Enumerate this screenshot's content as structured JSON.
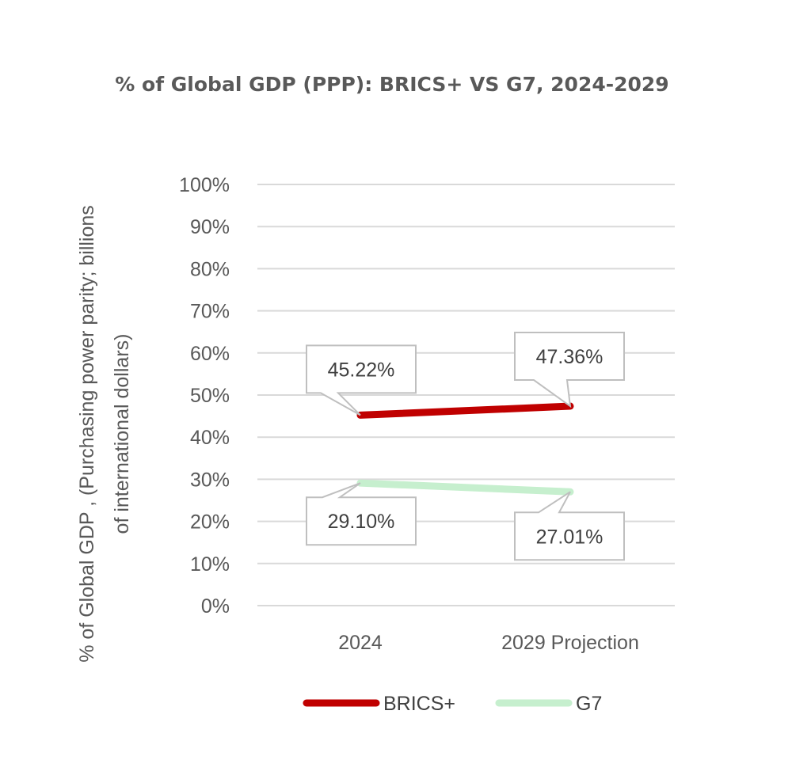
{
  "chart_data": {
    "type": "line",
    "title": "% of Global GDP (PPP): BRICS+ VS G7, 2024-2029",
    "ylabel_lines": [
      "% of Global GDP , (Purchasing power parity; billions",
      "of international dollars)"
    ],
    "xlabel": "",
    "categories": [
      "2024",
      "2029 Projection"
    ],
    "yticks": [
      "0%",
      "10%",
      "20%",
      "30%",
      "40%",
      "50%",
      "60%",
      "70%",
      "80%",
      "90%",
      "100%"
    ],
    "ylim": [
      0,
      100
    ],
    "grid": true,
    "legend_position": "bottom",
    "series": [
      {
        "name": "BRICS+",
        "values": [
          45.22,
          47.36
        ],
        "labels": [
          "45.22%",
          "47.36%"
        ],
        "color": "#C00000"
      },
      {
        "name": "G7",
        "values": [
          29.1,
          27.01
        ],
        "labels": [
          "29.10%",
          "27.01%"
        ],
        "color": "#C6EFCE"
      }
    ]
  }
}
